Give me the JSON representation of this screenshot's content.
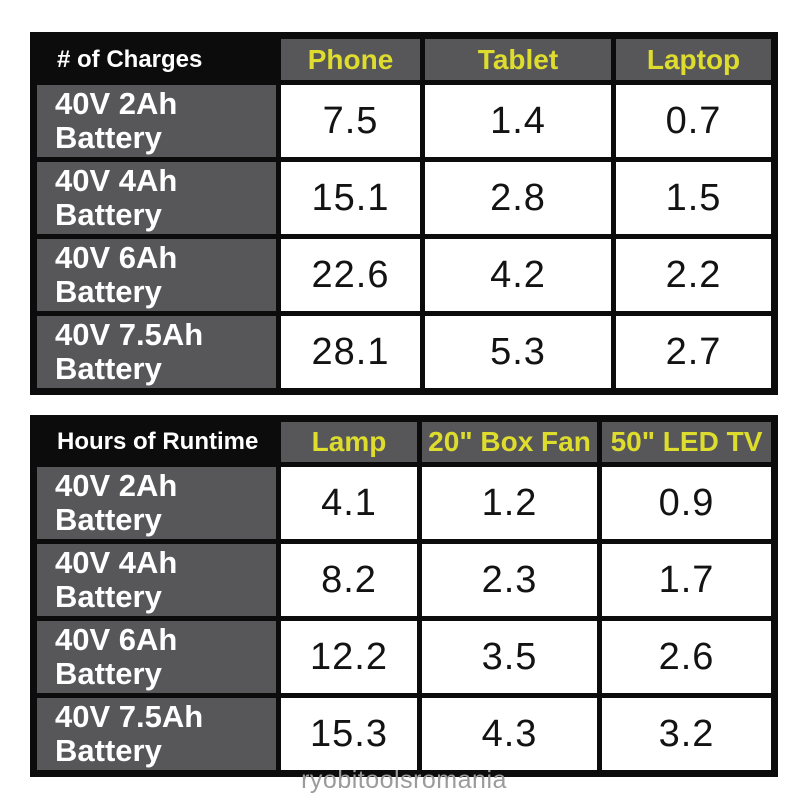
{
  "colors": {
    "border_black": "#0c0c0c",
    "cell_gray": "#57575a",
    "accent_yellow": "#dedd2d",
    "label_white": "#ffffff",
    "value_black": "#131313",
    "watermark_gray": "#9b9b9b",
    "page_background": "#ffffff"
  },
  "watermark": "ryobitoolsromania",
  "tables": [
    {
      "corner": "# of Charges",
      "columns": [
        "Phone",
        "Tablet",
        "Laptop"
      ],
      "rows": [
        {
          "label": "40V 2Ah Battery",
          "values": [
            "7.5",
            "1.4",
            "0.7"
          ]
        },
        {
          "label": "40V 4Ah Battery",
          "values": [
            "15.1",
            "2.8",
            "1.5"
          ]
        },
        {
          "label": "40V 6Ah Battery",
          "values": [
            "22.6",
            "4.2",
            "2.2"
          ]
        },
        {
          "label": "40V 7.5Ah Battery",
          "values": [
            "28.1",
            "5.3",
            "2.7"
          ]
        }
      ]
    },
    {
      "corner": "Hours of Runtime",
      "columns": [
        "Lamp",
        "20\" Box Fan",
        "50\" LED TV"
      ],
      "rows": [
        {
          "label": "40V 2Ah Battery",
          "values": [
            "4.1",
            "1.2",
            "0.9"
          ]
        },
        {
          "label": "40V 4Ah Battery",
          "values": [
            "8.2",
            "2.3",
            "1.7"
          ]
        },
        {
          "label": "40V 6Ah Battery",
          "values": [
            "12.2",
            "3.5",
            "2.6"
          ]
        },
        {
          "label": "40V 7.5Ah Battery",
          "values": [
            "15.3",
            "4.3",
            "3.2"
          ]
        }
      ]
    }
  ],
  "chart_data": [
    {
      "type": "table",
      "title": "# of Charges",
      "columns": [
        "Phone",
        "Tablet",
        "Laptop"
      ],
      "row_labels": [
        "40V 2Ah Battery",
        "40V 4Ah Battery",
        "40V 6Ah Battery",
        "40V 7.5Ah Battery"
      ],
      "values": [
        [
          7.5,
          1.4,
          0.7
        ],
        [
          15.1,
          2.8,
          1.5
        ],
        [
          22.6,
          4.2,
          2.2
        ],
        [
          28.1,
          5.3,
          2.7
        ]
      ]
    },
    {
      "type": "table",
      "title": "Hours of Runtime",
      "columns": [
        "Lamp",
        "20\" Box Fan",
        "50\" LED TV"
      ],
      "row_labels": [
        "40V 2Ah Battery",
        "40V 4Ah Battery",
        "40V 6Ah Battery",
        "40V 7.5Ah Battery"
      ],
      "values": [
        [
          4.1,
          1.2,
          0.9
        ],
        [
          8.2,
          2.3,
          1.7
        ],
        [
          12.2,
          3.5,
          2.6
        ],
        [
          15.3,
          4.3,
          3.2
        ]
      ]
    }
  ]
}
